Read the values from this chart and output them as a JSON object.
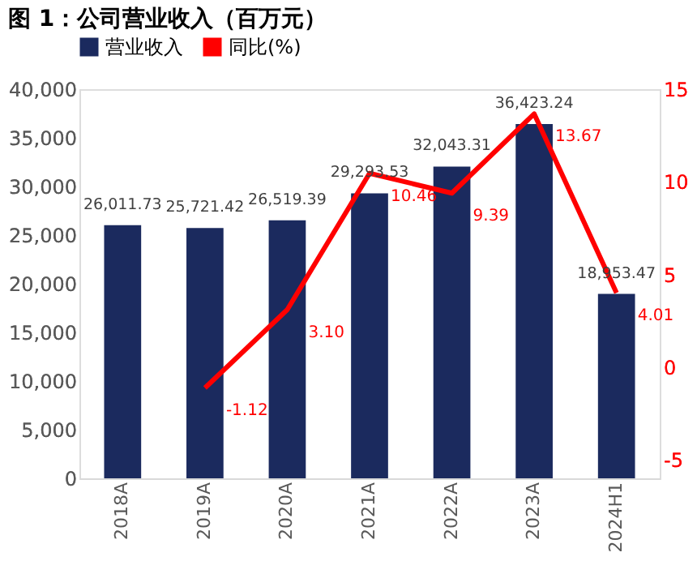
{
  "chart_data": {
    "type": "bar",
    "title": "图 1：公司营业收入（百万元）",
    "categories": [
      "2018A",
      "2019A",
      "2020A",
      "2021A",
      "2022A",
      "2023A",
      "2024H1"
    ],
    "series": [
      {
        "name": "营业收入",
        "color": "#1b2a5e",
        "values": [
          26011.73,
          25721.42,
          26519.39,
          29293.53,
          32043.31,
          36423.24,
          18953.47
        ],
        "value_labels": [
          "26,011.73",
          "25,721.42",
          "26,519.39",
          "29,293.53",
          "32,043.31",
          "36,423.24",
          "18,953.47"
        ]
      },
      {
        "name": "同比(%)",
        "type": "line",
        "axis": "y2",
        "color": "#ff0000",
        "values": [
          null,
          -1.12,
          3.1,
          10.46,
          9.39,
          13.67,
          4.01
        ],
        "value_labels": [
          null,
          "-1.12",
          "3.10",
          "10.46",
          "9.39",
          "13.67",
          "4.01"
        ]
      }
    ],
    "ylim": [
      0,
      40000
    ],
    "yticks": [
      {
        "value": 0,
        "label": "0"
      },
      {
        "value": 5000,
        "label": "5,000"
      },
      {
        "value": 10000,
        "label": "10,000"
      },
      {
        "value": 15000,
        "label": "15,000"
      },
      {
        "value": 20000,
        "label": "20,000"
      },
      {
        "value": 25000,
        "label": "25,000"
      },
      {
        "value": 30000,
        "label": "30,000"
      },
      {
        "value": 35000,
        "label": "35,000"
      },
      {
        "value": 40000,
        "label": "40,000"
      }
    ],
    "y2lim": [
      -6,
      15
    ],
    "y2ticks": [
      {
        "value": -5,
        "label": "-5"
      },
      0,
      5,
      10,
      15
    ],
    "legend": "top",
    "grid": false
  }
}
